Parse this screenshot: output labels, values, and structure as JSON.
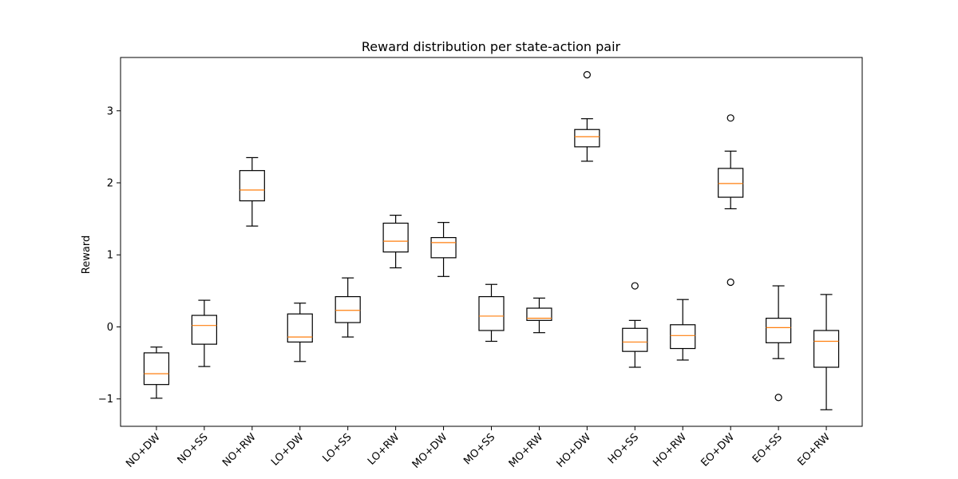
{
  "chart_data": {
    "type": "boxplot",
    "title": "Reward distribution per state-action pair",
    "xlabel": "",
    "ylabel": "Reward",
    "ylim": [
      -1.38,
      3.74
    ],
    "yticks": [
      -1,
      0,
      1,
      2,
      3
    ],
    "grid": false,
    "categories": [
      "NO+DW",
      "NO+SS",
      "NO+RW",
      "LO+DW",
      "LO+SS",
      "LO+RW",
      "MO+DW",
      "MO+SS",
      "MO+RW",
      "HO+DW",
      "HO+SS",
      "HO+RW",
      "EO+DW",
      "EO+SS",
      "EO+RW"
    ],
    "boxes": [
      {
        "label": "NO+DW",
        "whislo": -0.99,
        "q1": -0.8,
        "med": -0.65,
        "q3": -0.36,
        "whishi": -0.28,
        "fliers": []
      },
      {
        "label": "NO+SS",
        "whislo": -0.55,
        "q1": -0.24,
        "med": 0.02,
        "q3": 0.16,
        "whishi": 0.37,
        "fliers": []
      },
      {
        "label": "NO+RW",
        "whislo": 1.4,
        "q1": 1.75,
        "med": 1.9,
        "q3": 2.17,
        "whishi": 2.35,
        "fliers": []
      },
      {
        "label": "LO+DW",
        "whislo": -0.48,
        "q1": -0.21,
        "med": -0.14,
        "q3": 0.18,
        "whishi": 0.33,
        "fliers": []
      },
      {
        "label": "LO+SS",
        "whislo": -0.14,
        "q1": 0.06,
        "med": 0.23,
        "q3": 0.42,
        "whishi": 0.68,
        "fliers": []
      },
      {
        "label": "LO+RW",
        "whislo": 0.82,
        "q1": 1.04,
        "med": 1.19,
        "q3": 1.44,
        "whishi": 1.55,
        "fliers": []
      },
      {
        "label": "MO+DW",
        "whislo": 0.7,
        "q1": 0.96,
        "med": 1.17,
        "q3": 1.24,
        "whishi": 1.45,
        "fliers": []
      },
      {
        "label": "MO+SS",
        "whislo": -0.2,
        "q1": -0.05,
        "med": 0.15,
        "q3": 0.42,
        "whishi": 0.59,
        "fliers": []
      },
      {
        "label": "MO+RW",
        "whislo": -0.08,
        "q1": 0.09,
        "med": 0.12,
        "q3": 0.26,
        "whishi": 0.4,
        "fliers": []
      },
      {
        "label": "HO+DW",
        "whislo": 2.3,
        "q1": 2.5,
        "med": 2.64,
        "q3": 2.74,
        "whishi": 2.89,
        "fliers": [
          3.5
        ]
      },
      {
        "label": "HO+SS",
        "whislo": -0.56,
        "q1": -0.34,
        "med": -0.21,
        "q3": -0.02,
        "whishi": 0.09,
        "fliers": [
          0.57
        ]
      },
      {
        "label": "HO+RW",
        "whislo": -0.46,
        "q1": -0.3,
        "med": -0.12,
        "q3": 0.03,
        "whishi": 0.38,
        "fliers": []
      },
      {
        "label": "EO+DW",
        "whislo": 1.64,
        "q1": 1.8,
        "med": 1.99,
        "q3": 2.2,
        "whishi": 2.44,
        "fliers": [
          2.9,
          0.62
        ]
      },
      {
        "label": "EO+SS",
        "whislo": -0.44,
        "q1": -0.22,
        "med": -0.01,
        "q3": 0.12,
        "whishi": 0.57,
        "fliers": [
          -0.98
        ]
      },
      {
        "label": "EO+RW",
        "whislo": -1.15,
        "q1": -0.56,
        "med": -0.2,
        "q3": -0.05,
        "whishi": 0.45,
        "fliers": []
      }
    ]
  }
}
